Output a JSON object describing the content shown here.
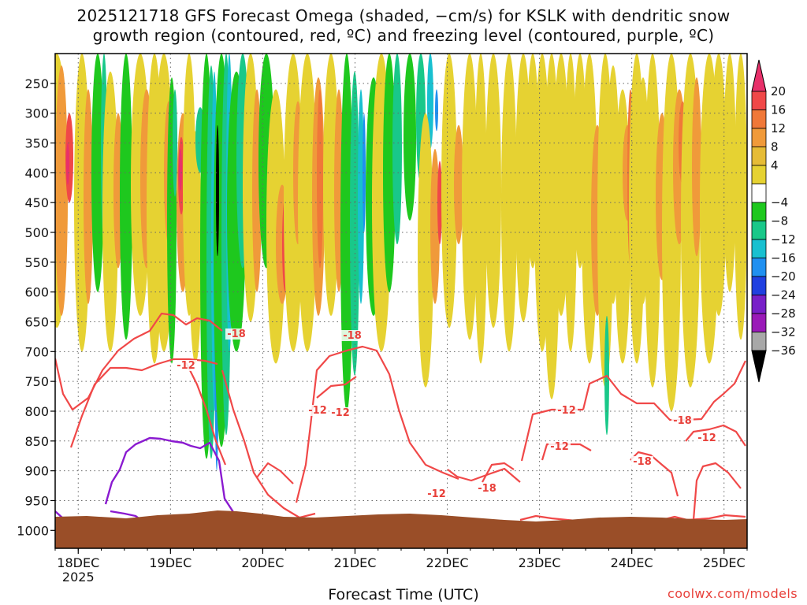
{
  "title_line1": "2025121718 GFS Forecast Omega (shaded, −cm/s) for KSLK with dendritic snow",
  "title_line2": "growth region (contoured, red, ºC) and freezing level (contoured, purple, ºC)",
  "credit": "coolwx.com/models",
  "chart_data": {
    "type": "heatmap",
    "title": "2025121718 GFS Forecast Omega (shaded, −cm/s) for KSLK with dendritic snow growth region (contoured, red, ºC) and freezing level (contoured, purple, ºC)",
    "xlabel": "Forecast Time (UTC)",
    "ylabel": "",
    "x_ticks": [
      {
        "label": "18DEC",
        "sublabel": "2025",
        "hours": 6
      },
      {
        "label": "19DEC",
        "sublabel": "",
        "hours": 30
      },
      {
        "label": "20DEC",
        "sublabel": "",
        "hours": 54
      },
      {
        "label": "21DEC",
        "sublabel": "",
        "hours": 78
      },
      {
        "label": "22DEC",
        "sublabel": "",
        "hours": 102
      },
      {
        "label": "23DEC",
        "sublabel": "",
        "hours": 126
      },
      {
        "label": "24DEC",
        "sublabel": "",
        "hours": 150
      },
      {
        "label": "25DEC",
        "sublabel": "",
        "hours": 174
      }
    ],
    "x_range_hours": [
      0,
      180
    ],
    "y_axis": "pressure (hPa), top 200 to 1000",
    "y_ticks": [
      250,
      300,
      350,
      400,
      450,
      500,
      550,
      600,
      650,
      700,
      750,
      800,
      850,
      900,
      950,
      1000
    ],
    "y_range": [
      200,
      1030
    ],
    "grid": true,
    "colorbar": {
      "ticks": [
        "20",
        "16",
        "12",
        "8",
        "4",
        "−4",
        "−8",
        "−12",
        "−16",
        "−20",
        "−24",
        "−28",
        "−32",
        "−36"
      ],
      "colors": [
        "#e8306a",
        "#f04848",
        "#f07838",
        "#f09a3a",
        "#e6bc36",
        "#e6d232",
        "#ffffff",
        "#1ec81e",
        "#19c889",
        "#18c0d0",
        "#2090f0",
        "#2040e0",
        "#7820c8",
        "#9a1ab8",
        "#a8a8a8",
        "#000000"
      ]
    },
    "contours": {
      "dgz_labels": [
        "-18",
        "-12",
        "-18",
        "-12",
        "-12",
        "-12",
        "-18",
        "-18",
        "-12",
        "-18",
        "-12",
        "-12",
        "-18",
        "-12"
      ],
      "dgz_color": "#f04848",
      "freezing_color": "#8a1ad0",
      "terrain_color": "#9a4e28"
    }
  }
}
